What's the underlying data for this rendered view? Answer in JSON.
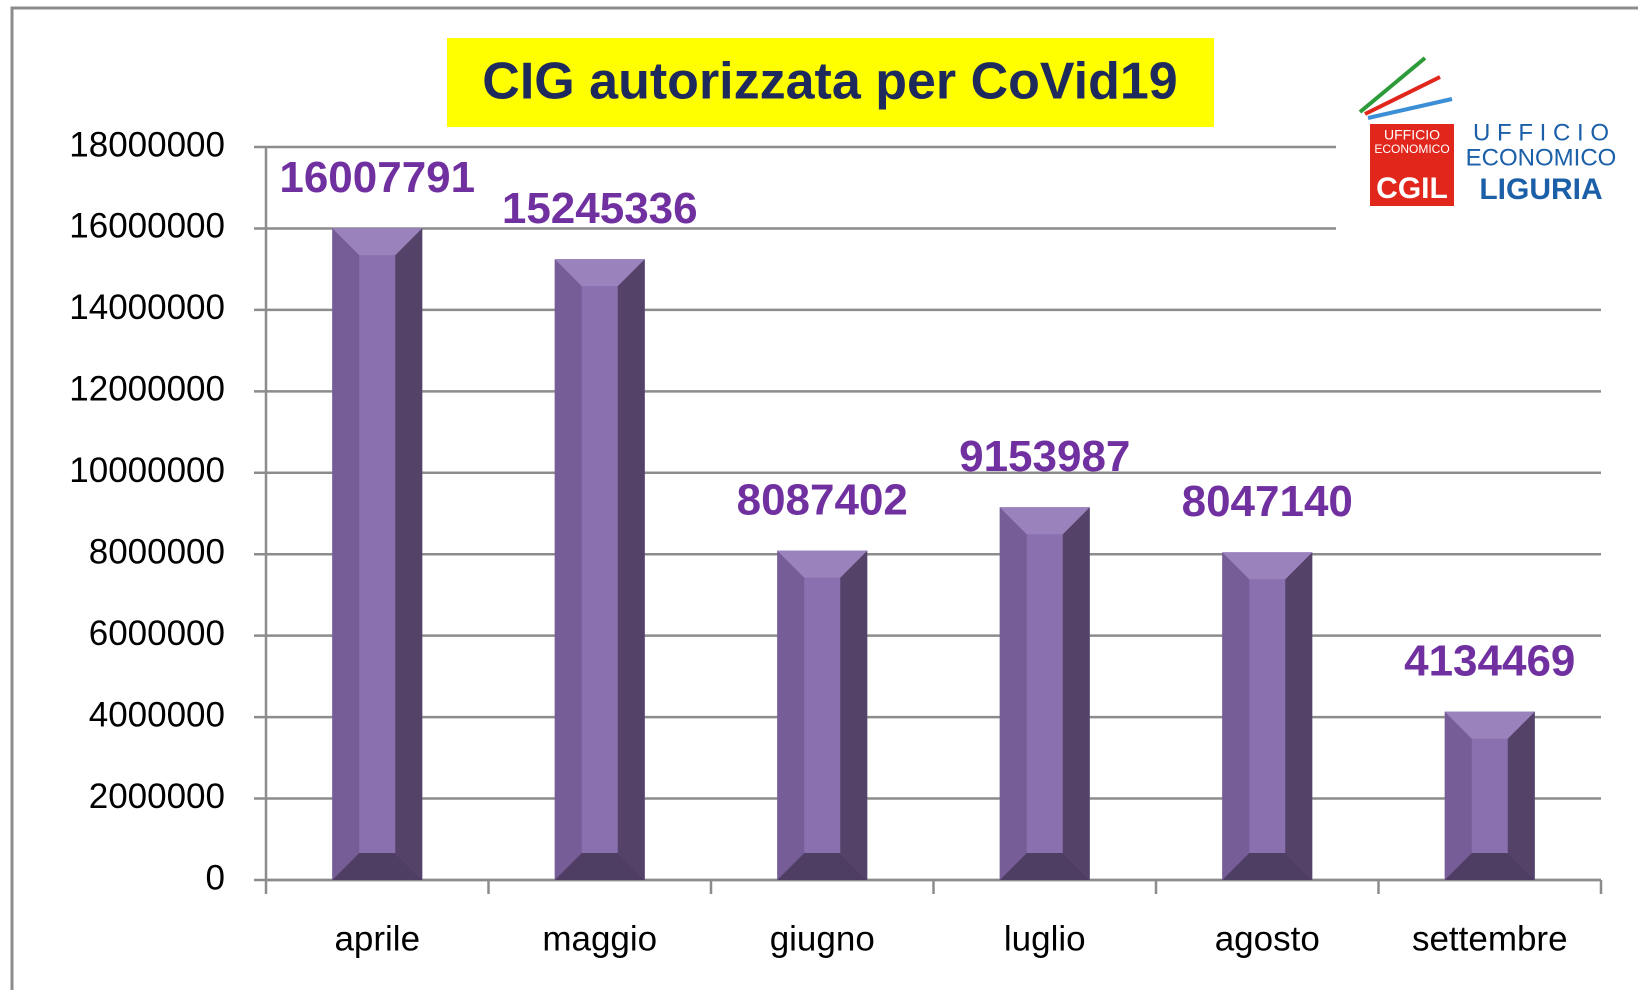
{
  "chart_data": {
    "type": "bar",
    "title": "CIG autorizzata per CoVid19",
    "categories": [
      "aprile",
      "maggio",
      "giugno",
      "luglio",
      "agosto",
      "settembre"
    ],
    "values": [
      16007791,
      15245336,
      8087402,
      9153987,
      8047140,
      4134469
    ],
    "color": "#8a70ae",
    "ylim": [
      0,
      18000000
    ],
    "yticks": [
      0,
      2000000,
      4000000,
      6000000,
      8000000,
      10000000,
      12000000,
      14000000,
      16000000,
      18000000
    ],
    "grid": true
  },
  "logo": {
    "box_line1": "UFFICIO",
    "box_line2": "ECONOMICO",
    "line1": "U F F I C I O",
    "line2": "ECONOMICO",
    "brand": "CGIL",
    "region": "LIGURIA"
  }
}
